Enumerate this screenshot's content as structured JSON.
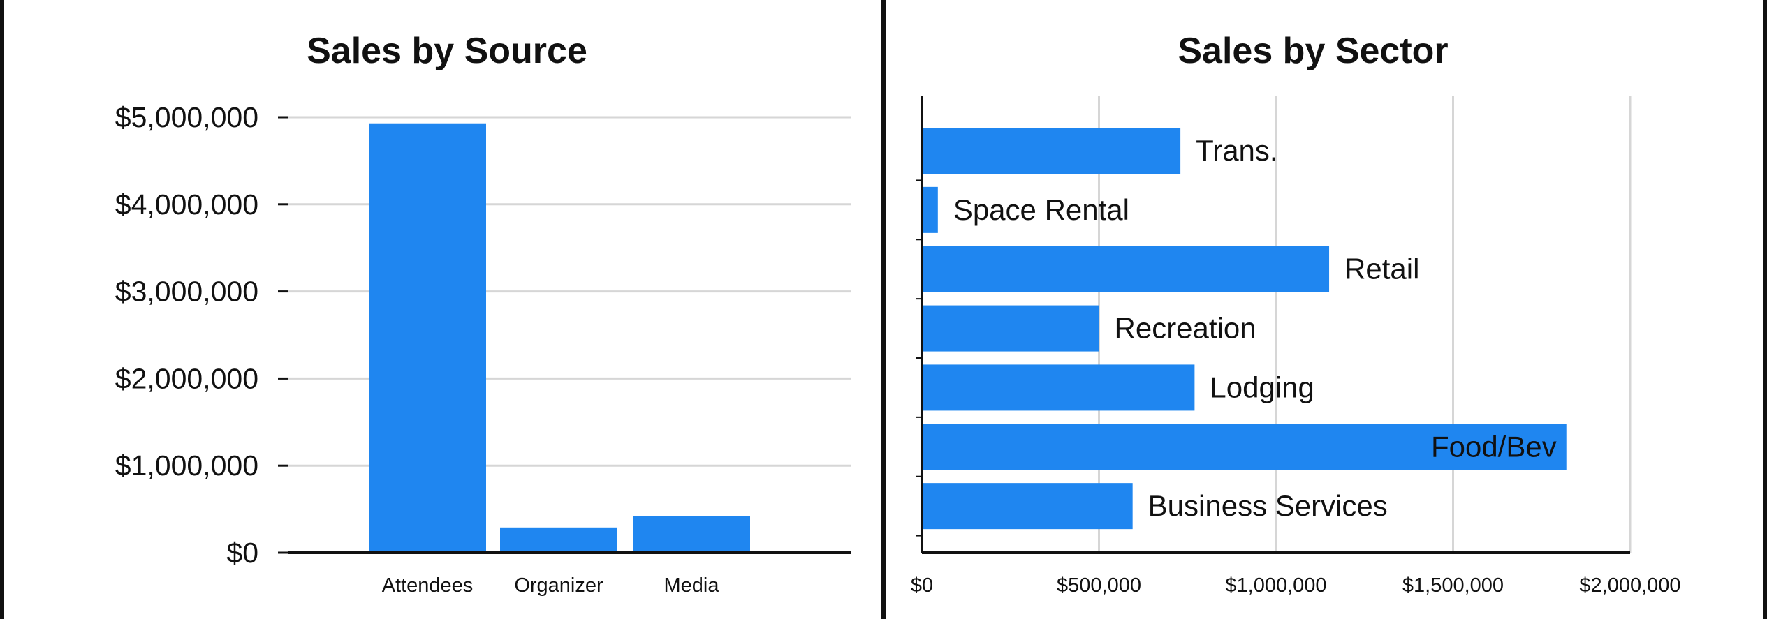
{
  "colors": {
    "bar": "#1f86f0",
    "grid": "#d6d6d6",
    "axis": "#111111",
    "border": "#111111"
  },
  "chart_data": [
    {
      "type": "bar",
      "title": "Sales by Source",
      "categories": [
        "Attendees",
        "Organizer",
        "Media"
      ],
      "values": [
        4930000,
        290000,
        420000
      ],
      "ylim": [
        0,
        5000000
      ],
      "yticks": [
        0,
        1000000,
        2000000,
        3000000,
        4000000,
        5000000
      ],
      "ytick_labels": [
        "$0",
        "$1,000,000",
        "$2,000,000",
        "$3,000,000",
        "$4,000,000",
        "$5,000,000"
      ],
      "xlabel": "",
      "ylabel": "",
      "grid": "horizontal",
      "legend": "none"
    },
    {
      "type": "bar",
      "orientation": "horizontal",
      "title": "Sales by Sector",
      "categories": [
        "Trans.",
        "Space Rental",
        "Retail",
        "Recreation",
        "Lodging",
        "Food/Bev",
        "Business Services"
      ],
      "values": [
        730000,
        45000,
        1150000,
        500000,
        770000,
        1820000,
        595000
      ],
      "xlim": [
        0,
        2000000
      ],
      "xticks": [
        0,
        500000,
        1000000,
        1500000,
        2000000
      ],
      "xtick_labels": [
        "$0",
        "$500,000",
        "$1,000,000",
        "$1,500,000",
        "$2,000,000"
      ],
      "xlabel": "",
      "ylabel": "",
      "grid": "vertical",
      "legend": "none"
    }
  ]
}
